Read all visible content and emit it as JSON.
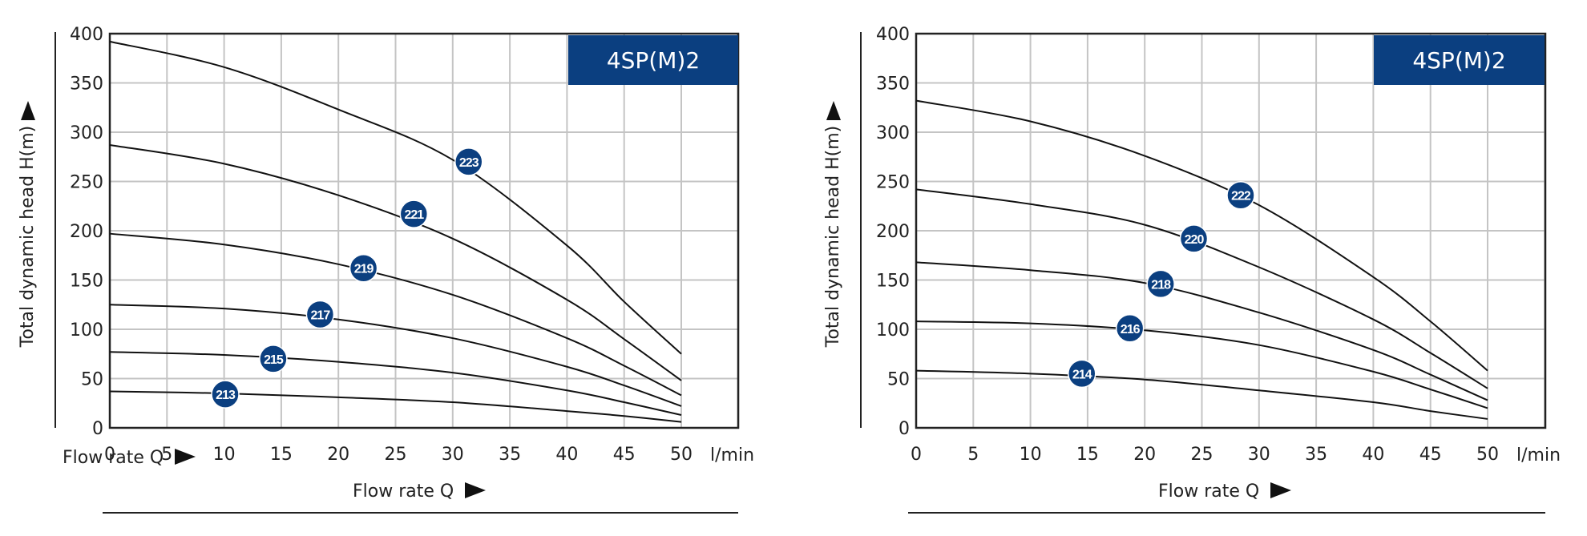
{
  "chart_data": [
    {
      "type": "line",
      "title": "4SP(M)2",
      "xlabel": "Flow rate Q",
      "ylabel": "Total dynamic head H(m)",
      "unit_label": "l/min",
      "stray_label": "Flow rate Q",
      "xlim": [
        0,
        50
      ],
      "ylim": [
        0,
        400
      ],
      "x_ticks": [
        "0",
        "5",
        "10",
        "15",
        "20",
        "25",
        "30",
        "35",
        "40",
        "45",
        "50"
      ],
      "y_ticks": [
        "0",
        "50",
        "100",
        "150",
        "200",
        "250",
        "300",
        "350",
        "400"
      ],
      "grid": true,
      "series": [
        {
          "name": "223",
          "label_at": [
            31.4,
            270
          ],
          "points": [
            [
              0,
              392
            ],
            [
              10,
              366
            ],
            [
              20,
              323
            ],
            [
              30,
              272
            ],
            [
              40,
              185
            ],
            [
              45,
              128
            ],
            [
              50,
              75
            ]
          ]
        },
        {
          "name": "221",
          "label_at": [
            26.6,
            217
          ],
          "points": [
            [
              0,
              287
            ],
            [
              10,
              268
            ],
            [
              20,
              236
            ],
            [
              30,
              192
            ],
            [
              40,
              130
            ],
            [
              45,
              90
            ],
            [
              50,
              48
            ]
          ]
        },
        {
          "name": "219",
          "label_at": [
            22.2,
            162
          ],
          "points": [
            [
              0,
              197
            ],
            [
              10,
              186
            ],
            [
              20,
              166
            ],
            [
              30,
              135
            ],
            [
              40,
              91
            ],
            [
              45,
              63
            ],
            [
              50,
              33
            ]
          ]
        },
        {
          "name": "217",
          "label_at": [
            18.4,
            115
          ],
          "points": [
            [
              0,
              125
            ],
            [
              10,
              121
            ],
            [
              20,
              110
            ],
            [
              30,
              91
            ],
            [
              40,
              62
            ],
            [
              45,
              43
            ],
            [
              50,
              22
            ]
          ]
        },
        {
          "name": "215",
          "label_at": [
            14.3,
            70
          ],
          "points": [
            [
              0,
              77
            ],
            [
              10,
              74
            ],
            [
              20,
              67
            ],
            [
              30,
              56
            ],
            [
              40,
              38
            ],
            [
              45,
              26
            ],
            [
              50,
              13
            ]
          ]
        },
        {
          "name": "213",
          "label_at": [
            10.1,
            34
          ],
          "points": [
            [
              0,
              37
            ],
            [
              10,
              35
            ],
            [
              20,
              31
            ],
            [
              30,
              26
            ],
            [
              40,
              17
            ],
            [
              45,
              12
            ],
            [
              50,
              6
            ]
          ]
        }
      ]
    },
    {
      "type": "line",
      "title": "4SP(M)2",
      "xlabel": "Flow rate Q",
      "ylabel": "Total dynamic head H(m)",
      "unit_label": "l/min",
      "xlim": [
        0,
        50
      ],
      "ylim": [
        0,
        400
      ],
      "x_ticks": [
        "0",
        "5",
        "10",
        "15",
        "20",
        "25",
        "30",
        "35",
        "40",
        "45",
        "50"
      ],
      "y_ticks": [
        "0",
        "50",
        "100",
        "150",
        "200",
        "250",
        "300",
        "350",
        "400"
      ],
      "grid": true,
      "series": [
        {
          "name": "222",
          "label_at": [
            28.4,
            236
          ],
          "points": [
            [
              0,
              332
            ],
            [
              10,
              311
            ],
            [
              20,
              276
            ],
            [
              30,
              226
            ],
            [
              40,
              153
            ],
            [
              45,
              108
            ],
            [
              50,
              58
            ]
          ]
        },
        {
          "name": "220",
          "label_at": [
            24.3,
            192
          ],
          "points": [
            [
              0,
              242
            ],
            [
              10,
              227
            ],
            [
              20,
              206
            ],
            [
              30,
              163
            ],
            [
              40,
              110
            ],
            [
              45,
              76
            ],
            [
              50,
              40
            ]
          ]
        },
        {
          "name": "218",
          "label_at": [
            21.4,
            146
          ],
          "points": [
            [
              0,
              168
            ],
            [
              10,
              160
            ],
            [
              20,
              147
            ],
            [
              30,
              117
            ],
            [
              40,
              79
            ],
            [
              45,
              54
            ],
            [
              50,
              28
            ]
          ]
        },
        {
          "name": "216",
          "label_at": [
            18.7,
            101
          ],
          "points": [
            [
              0,
              108
            ],
            [
              10,
              106
            ],
            [
              20,
              99
            ],
            [
              30,
              84
            ],
            [
              40,
              57
            ],
            [
              45,
              39
            ],
            [
              50,
              20
            ]
          ]
        },
        {
          "name": "214",
          "label_at": [
            14.5,
            55
          ],
          "points": [
            [
              0,
              58
            ],
            [
              10,
              55
            ],
            [
              20,
              49
            ],
            [
              30,
              38
            ],
            [
              40,
              26
            ],
            [
              45,
              17
            ],
            [
              50,
              9
            ]
          ]
        }
      ]
    }
  ],
  "colors": {
    "badge": "#0b3f80",
    "title_bg": "#0b3f80",
    "curve": "#111111",
    "grid": "#c4c4c4",
    "frame": "#222222"
  }
}
